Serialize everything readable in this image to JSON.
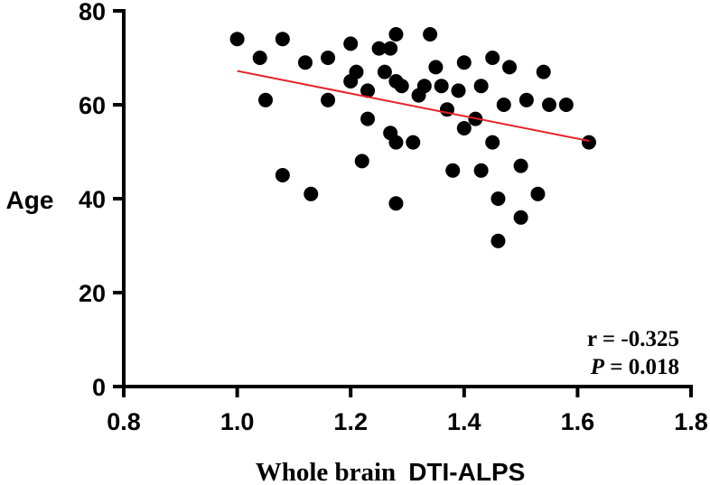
{
  "chart_data": {
    "type": "scatter",
    "title": "",
    "xlabel_prefix": "Whole brain",
    "xlabel_main": "DTI-ALPS",
    "ylabel": "Age",
    "xlim": [
      0.8,
      1.8
    ],
    "ylim": [
      0,
      80
    ],
    "xticks": [
      "0.8",
      "1.0",
      "1.2",
      "1.4",
      "1.6",
      "1.8"
    ],
    "yticks": [
      "0",
      "20",
      "40",
      "60",
      "80"
    ],
    "grid": false,
    "point_color": "#000000",
    "fit_color": "#e8202a",
    "points": [
      {
        "x": 1.0,
        "y": 74
      },
      {
        "x": 1.04,
        "y": 70
      },
      {
        "x": 1.05,
        "y": 61
      },
      {
        "x": 1.08,
        "y": 74
      },
      {
        "x": 1.08,
        "y": 45
      },
      {
        "x": 1.12,
        "y": 69
      },
      {
        "x": 1.13,
        "y": 41
      },
      {
        "x": 1.16,
        "y": 70
      },
      {
        "x": 1.16,
        "y": 61
      },
      {
        "x": 1.2,
        "y": 73
      },
      {
        "x": 1.2,
        "y": 65
      },
      {
        "x": 1.21,
        "y": 67
      },
      {
        "x": 1.22,
        "y": 48
      },
      {
        "x": 1.23,
        "y": 57
      },
      {
        "x": 1.23,
        "y": 63
      },
      {
        "x": 1.25,
        "y": 72
      },
      {
        "x": 1.26,
        "y": 67
      },
      {
        "x": 1.27,
        "y": 72
      },
      {
        "x": 1.27,
        "y": 54
      },
      {
        "x": 1.28,
        "y": 75
      },
      {
        "x": 1.28,
        "y": 65
      },
      {
        "x": 1.28,
        "y": 52
      },
      {
        "x": 1.28,
        "y": 39
      },
      {
        "x": 1.29,
        "y": 64
      },
      {
        "x": 1.31,
        "y": 52
      },
      {
        "x": 1.32,
        "y": 62
      },
      {
        "x": 1.33,
        "y": 64
      },
      {
        "x": 1.34,
        "y": 75
      },
      {
        "x": 1.35,
        "y": 68
      },
      {
        "x": 1.36,
        "y": 64
      },
      {
        "x": 1.37,
        "y": 59
      },
      {
        "x": 1.38,
        "y": 46
      },
      {
        "x": 1.39,
        "y": 63
      },
      {
        "x": 1.4,
        "y": 55
      },
      {
        "x": 1.4,
        "y": 69
      },
      {
        "x": 1.42,
        "y": 57
      },
      {
        "x": 1.43,
        "y": 64
      },
      {
        "x": 1.43,
        "y": 46
      },
      {
        "x": 1.45,
        "y": 52
      },
      {
        "x": 1.45,
        "y": 70
      },
      {
        "x": 1.46,
        "y": 31
      },
      {
        "x": 1.46,
        "y": 40
      },
      {
        "x": 1.47,
        "y": 60
      },
      {
        "x": 1.48,
        "y": 68
      },
      {
        "x": 1.5,
        "y": 36
      },
      {
        "x": 1.5,
        "y": 47
      },
      {
        "x": 1.51,
        "y": 61
      },
      {
        "x": 1.53,
        "y": 41
      },
      {
        "x": 1.54,
        "y": 67
      },
      {
        "x": 1.55,
        "y": 60
      },
      {
        "x": 1.58,
        "y": 60
      },
      {
        "x": 1.62,
        "y": 52
      }
    ],
    "fit_line": {
      "x": [
        1.0,
        1.62
      ],
      "y": [
        67.2,
        52.3
      ]
    },
    "annotation": {
      "r_text": "r = -0.325",
      "p_symbol": "P",
      "p_text": " = 0.018"
    }
  }
}
